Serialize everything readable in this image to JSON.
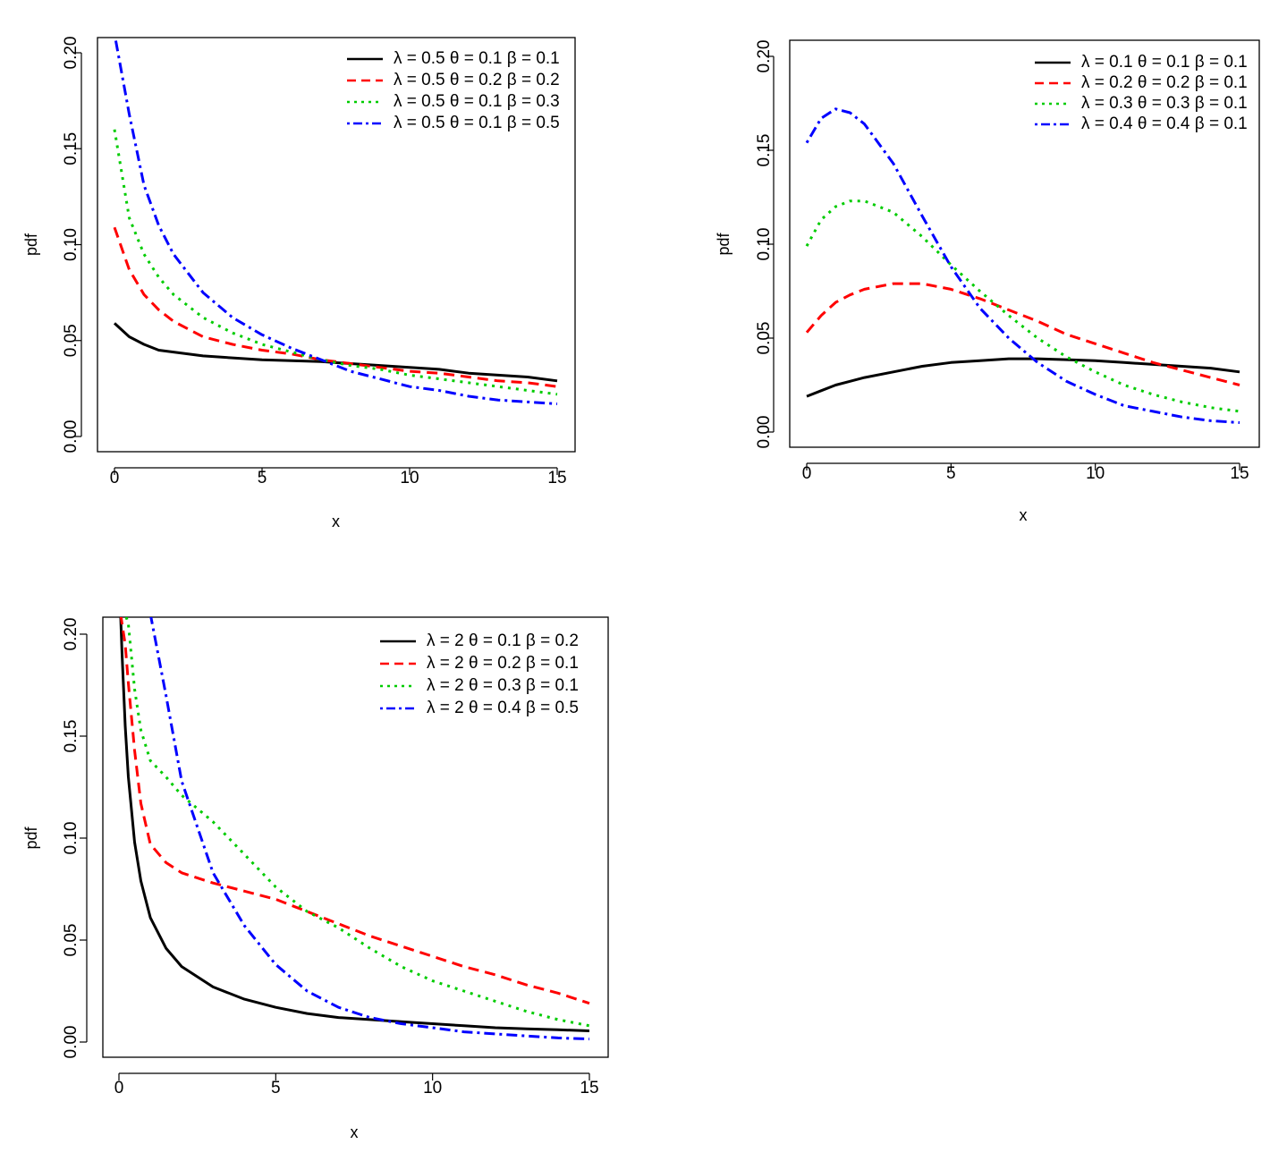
{
  "colors": {
    "black": "#000000",
    "red": "#ff0000",
    "green": "#00cc00",
    "blue": "#0000ff"
  },
  "chart_data": [
    {
      "type": "line",
      "title": "",
      "xlabel": "x",
      "ylabel": "pdf",
      "xlim": [
        0,
        15
      ],
      "ylim": [
        0,
        0.2
      ],
      "xticks": [
        "0",
        "5",
        "10",
        "15"
      ],
      "yticks": [
        "0.00",
        "0.05",
        "0.10",
        "0.15",
        "0.20"
      ],
      "legend_position": "top-right",
      "grid": false,
      "x": [
        0,
        0.5,
        1,
        1.5,
        2,
        3,
        4,
        5,
        6,
        7,
        8,
        9,
        10,
        11,
        12,
        13,
        14,
        15
      ],
      "series": [
        {
          "name": "λ = 0.5  θ = 0.1  β = 0.1",
          "color": "#000000",
          "dash": "solid",
          "values": [
            0.059,
            0.052,
            0.048,
            0.045,
            0.044,
            0.042,
            0.041,
            0.04,
            0.0395,
            0.039,
            0.038,
            0.037,
            0.036,
            0.035,
            0.033,
            0.032,
            0.031,
            0.029
          ]
        },
        {
          "name": "λ = 0.5  θ = 0.2  β = 0.2",
          "color": "#ff0000",
          "dash": "dashed",
          "values": [
            0.109,
            0.087,
            0.074,
            0.066,
            0.06,
            0.052,
            0.048,
            0.045,
            0.043,
            0.04,
            0.038,
            0.036,
            0.034,
            0.033,
            0.031,
            0.029,
            0.028,
            0.026
          ]
        },
        {
          "name": "λ = 0.5  θ = 0.1  β = 0.3",
          "color": "#00cc00",
          "dash": "dotted",
          "values": [
            0.16,
            0.114,
            0.095,
            0.083,
            0.074,
            0.062,
            0.054,
            0.048,
            0.044,
            0.04,
            0.037,
            0.035,
            0.032,
            0.03,
            0.028,
            0.026,
            0.024,
            0.022
          ]
        },
        {
          "name": "λ = 0.5  θ = 0.1  β = 0.5",
          "color": "#0000ff",
          "dash": "dotdash",
          "values": [
            0.21,
            0.168,
            0.131,
            0.11,
            0.095,
            0.075,
            0.062,
            0.053,
            0.046,
            0.04,
            0.034,
            0.03,
            0.026,
            0.024,
            0.021,
            0.019,
            0.018,
            0.017
          ]
        }
      ]
    },
    {
      "type": "line",
      "title": "",
      "xlabel": "x",
      "ylabel": "pdf",
      "xlim": [
        0,
        15
      ],
      "ylim": [
        0,
        0.2
      ],
      "xticks": [
        "0",
        "5",
        "10",
        "15"
      ],
      "yticks": [
        "0.00",
        "0.05",
        "0.10",
        "0.15",
        "0.20"
      ],
      "legend_position": "top-right",
      "grid": false,
      "x": [
        0,
        0.5,
        1,
        1.5,
        2,
        3,
        4,
        5,
        6,
        7,
        8,
        9,
        10,
        11,
        12,
        13,
        14,
        15
      ],
      "series": [
        {
          "name": "λ = 0.1  θ = 0.1  β = 0.1",
          "color": "#000000",
          "dash": "solid",
          "values": [
            0.019,
            0.022,
            0.025,
            0.027,
            0.029,
            0.032,
            0.035,
            0.037,
            0.038,
            0.039,
            0.039,
            0.0385,
            0.038,
            0.037,
            0.036,
            0.035,
            0.034,
            0.032
          ]
        },
        {
          "name": "λ = 0.2  θ = 0.2  β = 0.1",
          "color": "#ff0000",
          "dash": "dashed",
          "values": [
            0.053,
            0.062,
            0.069,
            0.073,
            0.076,
            0.079,
            0.079,
            0.076,
            0.071,
            0.065,
            0.059,
            0.052,
            0.047,
            0.042,
            0.037,
            0.033,
            0.029,
            0.025
          ]
        },
        {
          "name": "λ = 0.3  θ = 0.3  β = 0.1",
          "color": "#00cc00",
          "dash": "dotted",
          "values": [
            0.099,
            0.113,
            0.12,
            0.123,
            0.123,
            0.117,
            0.104,
            0.089,
            0.075,
            0.062,
            0.05,
            0.04,
            0.032,
            0.025,
            0.02,
            0.016,
            0.013,
            0.011
          ]
        },
        {
          "name": "λ = 0.4  θ = 0.4  β = 0.1",
          "color": "#0000ff",
          "dash": "dotdash",
          "values": [
            0.154,
            0.167,
            0.172,
            0.17,
            0.164,
            0.143,
            0.115,
            0.088,
            0.066,
            0.05,
            0.037,
            0.027,
            0.02,
            0.014,
            0.011,
            0.008,
            0.006,
            0.005
          ]
        }
      ]
    },
    {
      "type": "line",
      "title": "",
      "xlabel": "x",
      "ylabel": "pdf",
      "xlim": [
        0,
        15
      ],
      "ylim": [
        0,
        0.2
      ],
      "xticks": [
        "0",
        "5",
        "10",
        "15"
      ],
      "yticks": [
        "0.00",
        "0.05",
        "0.10",
        "0.15",
        "0.20"
      ],
      "legend_position": "top-right",
      "grid": false,
      "x": [
        0.05,
        0.1,
        0.2,
        0.3,
        0.5,
        0.7,
        1,
        1.5,
        2,
        3,
        4,
        5,
        6,
        7,
        8,
        9,
        10,
        11,
        12,
        13,
        14,
        15
      ],
      "series": [
        {
          "name": "λ = 2  θ = 0.1  β = 0.2",
          "color": "#000000",
          "dash": "solid",
          "values": [
            0.21,
            0.19,
            0.155,
            0.13,
            0.098,
            0.079,
            0.061,
            0.046,
            0.037,
            0.027,
            0.021,
            0.017,
            0.014,
            0.012,
            0.011,
            0.01,
            0.009,
            0.008,
            0.007,
            0.0065,
            0.006,
            0.0055
          ]
        },
        {
          "name": "λ = 2  θ = 0.2  β = 0.1",
          "color": "#ff0000",
          "dash": "dashed",
          "values": [
            0.21,
            0.205,
            0.195,
            0.176,
            0.143,
            0.117,
            0.097,
            0.088,
            0.083,
            0.078,
            0.074,
            0.07,
            0.064,
            0.058,
            0.052,
            0.047,
            0.042,
            0.037,
            0.033,
            0.028,
            0.024,
            0.019
          ]
        },
        {
          "name": "λ = 2  θ = 0.3  β = 0.1",
          "color": "#00cc00",
          "dash": "dotted",
          "values": [
            0.21,
            0.21,
            0.21,
            0.205,
            0.173,
            0.153,
            0.138,
            0.13,
            0.121,
            0.108,
            0.092,
            0.076,
            0.064,
            0.056,
            0.046,
            0.037,
            0.03,
            0.025,
            0.02,
            0.015,
            0.011,
            0.008
          ]
        },
        {
          "name": "λ = 2  θ = 0.4  β = 0.5",
          "color": "#0000ff",
          "dash": "dotdash",
          "values": [
            0.21,
            0.21,
            0.21,
            0.21,
            0.21,
            0.21,
            0.21,
            0.17,
            0.128,
            0.083,
            0.057,
            0.038,
            0.025,
            0.017,
            0.012,
            0.009,
            0.007,
            0.005,
            0.004,
            0.003,
            0.002,
            0.0015
          ]
        }
      ]
    }
  ]
}
